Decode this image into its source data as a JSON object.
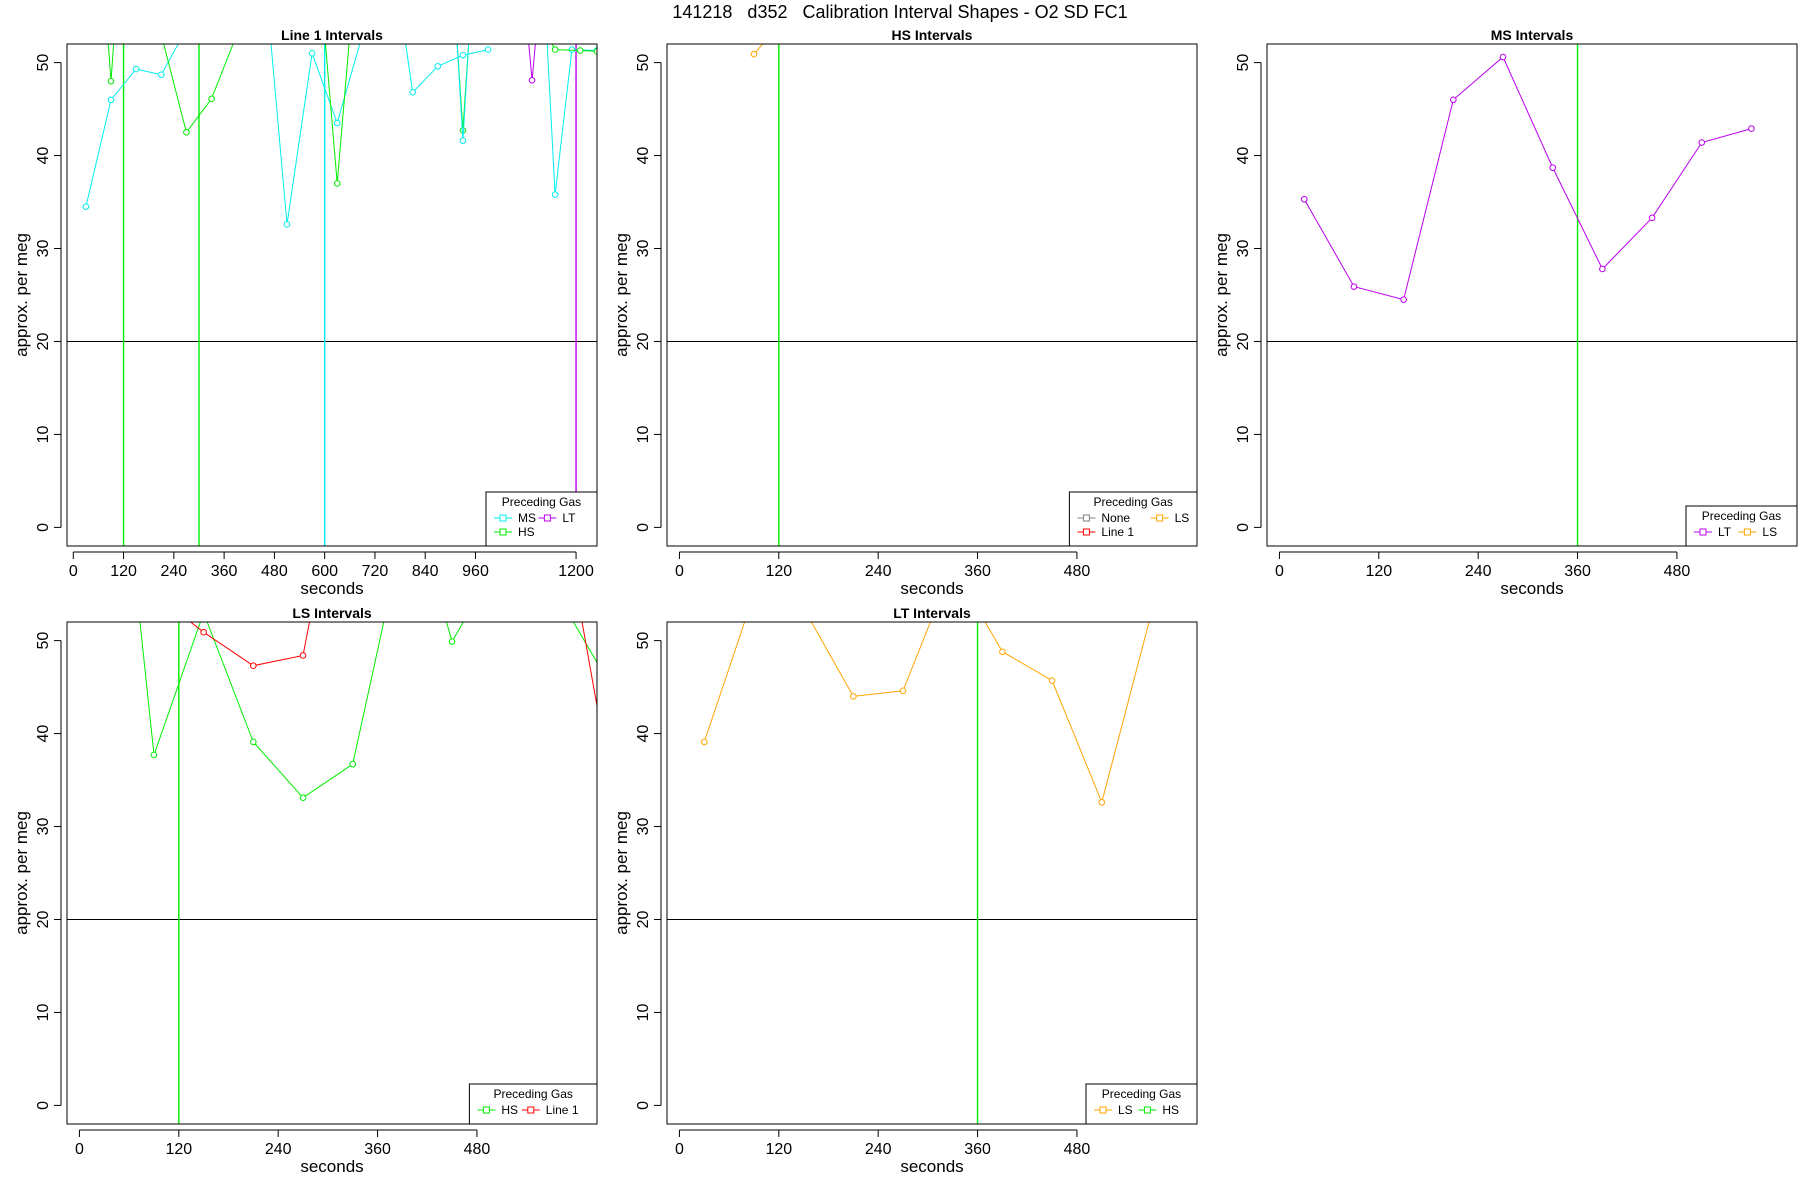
{
  "page": {
    "title": "141218   d352   Calibration Interval Shapes - O2 SD FC1"
  },
  "colors": {
    "None": "#808080",
    "Line 1": "#ff0000",
    "HS": "#00ee00",
    "MS": "#00eeee",
    "LS": "#ffa500",
    "LT": "#bb00ee",
    "vline": "#006400",
    "hline": "#000000"
  },
  "chart_data": [
    {
      "type": "line",
      "title": "Line 1 Intervals",
      "xlabel": "seconds",
      "ylabel": "approx. per meg",
      "xlim": [
        -15,
        1250
      ],
      "ylim": [
        -2,
        52
      ],
      "xticks": [
        0,
        120,
        240,
        360,
        480,
        600,
        720,
        840,
        960,
        1200
      ],
      "yticks": [
        0,
        10,
        20,
        30,
        40,
        50
      ],
      "hline": 20,
      "vlines": [
        {
          "x": 120,
          "gas": "HS"
        },
        {
          "x": 300,
          "gas": "HS"
        },
        {
          "x": 600,
          "gas": "MS"
        },
        {
          "x": 1200,
          "gas": "LT"
        }
      ],
      "legend": {
        "title": "Preceding Gas",
        "position": "bottom-right",
        "entries": [
          "MS",
          "HS",
          "LT"
        ],
        "ncol": 2
      },
      "series": [
        {
          "gas": "MS",
          "x": [
            30,
            90,
            150,
            210,
            270
          ],
          "y": [
            34.5,
            46,
            49.3,
            48.7,
            53.6
          ]
        },
        {
          "gas": "HS",
          "x": [
            82,
            90,
            98,
            108
          ],
          "y": [
            53,
            48,
            53,
            53
          ]
        },
        {
          "gas": "HS",
          "x": [
            210,
            270,
            330,
            390
          ],
          "y": [
            53,
            42.5,
            46.1,
            53
          ]
        },
        {
          "gas": "MS",
          "x": [
            470,
            510,
            570,
            630,
            690
          ],
          "y": [
            53,
            32.6,
            51,
            43.5,
            53
          ]
        },
        {
          "gas": "HS",
          "x": [
            600,
            630,
            660
          ],
          "y": [
            53,
            37,
            53
          ]
        },
        {
          "gas": "MS",
          "x": [
            790,
            810,
            870,
            930,
            990
          ],
          "y": [
            53,
            46.8,
            49.6,
            50.8,
            51.4
          ]
        },
        {
          "gas": "HS",
          "x": [
            915,
            930,
            945
          ],
          "y": [
            53,
            42.7,
            53
          ]
        },
        {
          "gas": "MS",
          "x": [
            915,
            930,
            945
          ],
          "y": [
            53,
            41.6,
            53
          ]
        },
        {
          "gas": "LT",
          "x": [
            1085,
            1095,
            1105
          ],
          "y": [
            53,
            48.1,
            53
          ]
        },
        {
          "gas": "MS",
          "x": [
            1130,
            1150,
            1190,
            1250
          ],
          "y": [
            53,
            35.8,
            51.4,
            51.3
          ]
        },
        {
          "gas": "HS",
          "x": [
            1130,
            1150,
            1210,
            1250
          ],
          "y": [
            53,
            51.4,
            51.3,
            51.2
          ]
        }
      ]
    },
    {
      "type": "line",
      "title": "HS Intervals",
      "xlabel": "seconds",
      "ylabel": "approx. per meg",
      "xlim": [
        -15,
        625
      ],
      "ylim": [
        -2,
        52
      ],
      "xticks": [
        0,
        120,
        240,
        360,
        480
      ],
      "yticks": [
        0,
        10,
        20,
        30,
        40,
        50
      ],
      "hline": 20,
      "vlines": [
        {
          "x": 120,
          "gas": "HS"
        }
      ],
      "legend": {
        "title": "Preceding Gas",
        "position": "bottom-right",
        "entries": [
          "None",
          "Line 1",
          "LS"
        ],
        "ncol": 2
      },
      "series": [
        {
          "gas": "LS",
          "x": [
            90,
            110
          ],
          "y": [
            50.9,
            53
          ]
        }
      ]
    },
    {
      "type": "line",
      "title": "MS Intervals",
      "xlabel": "seconds",
      "ylabel": "approx. per meg",
      "xlim": [
        -15,
        625
      ],
      "ylim": [
        -2,
        52
      ],
      "xticks": [
        0,
        120,
        240,
        360,
        480
      ],
      "yticks": [
        0,
        10,
        20,
        30,
        40,
        50
      ],
      "hline": 20,
      "vlines": [
        {
          "x": 360,
          "gas": "HS"
        }
      ],
      "legend": {
        "title": "Preceding Gas",
        "position": "bottom-right",
        "entries": [
          "LT",
          "LS"
        ],
        "ncol": 2
      },
      "series": [
        {
          "gas": "LT",
          "x": [
            30,
            90,
            150,
            210,
            270,
            330,
            390,
            450,
            510,
            570
          ],
          "y": [
            35.3,
            25.9,
            24.5,
            46,
            50.6,
            38.7,
            27.8,
            33.3,
            41.4,
            42.9
          ]
        }
      ]
    },
    {
      "type": "line",
      "title": "LS Intervals",
      "xlabel": "seconds",
      "ylabel": "approx. per meg",
      "xlim": [
        -15,
        625
      ],
      "ylim": [
        -2,
        52
      ],
      "xticks": [
        0,
        120,
        240,
        360,
        480
      ],
      "yticks": [
        0,
        10,
        20,
        30,
        40,
        50
      ],
      "hline": 20,
      "vlines": [
        {
          "x": 120,
          "gas": "HS"
        }
      ],
      "legend": {
        "title": "Preceding Gas",
        "position": "bottom-right",
        "entries": [
          "HS",
          "Line 1"
        ],
        "ncol": 2
      },
      "series": [
        {
          "gas": "HS",
          "x": [
            72,
            90,
            150,
            210,
            270,
            330,
            370
          ],
          "y": [
            53,
            37.7,
            53,
            39.1,
            33.1,
            36.7,
            53
          ]
        },
        {
          "gas": "Line 1",
          "x": [
            120,
            150,
            210,
            270,
            280
          ],
          "y": [
            53,
            50.9,
            47.3,
            48.4,
            53
          ]
        },
        {
          "gas": "HS",
          "x": [
            440,
            450,
            470
          ],
          "y": [
            53,
            49.9,
            53
          ]
        },
        {
          "gas": "HS",
          "x": [
            590,
            630
          ],
          "y": [
            53,
            46.9
          ]
        },
        {
          "gas": "Line 1",
          "x": [
            605,
            630
          ],
          "y": [
            53,
            40.5
          ]
        }
      ]
    },
    {
      "type": "line",
      "title": "LT Intervals",
      "xlabel": "seconds",
      "ylabel": "approx. per meg",
      "xlim": [
        -15,
        625
      ],
      "ylim": [
        -2,
        52
      ],
      "xticks": [
        0,
        120,
        240,
        360,
        480
      ],
      "yticks": [
        0,
        10,
        20,
        30,
        40,
        50
      ],
      "hline": 20,
      "vlines": [
        {
          "x": 360,
          "gas": "HS"
        }
      ],
      "legend": {
        "title": "Preceding Gas",
        "position": "bottom-right",
        "entries": [
          "LS",
          "HS"
        ],
        "ncol": 2
      },
      "series": [
        {
          "gas": "LS",
          "x": [
            30,
            90,
            150,
            210,
            270,
            330,
            390,
            450,
            510,
            570
          ],
          "y": [
            39.1,
            55,
            53.5,
            44,
            44.6,
            58,
            48.8,
            45.7,
            32.6,
            53
          ]
        }
      ]
    }
  ]
}
